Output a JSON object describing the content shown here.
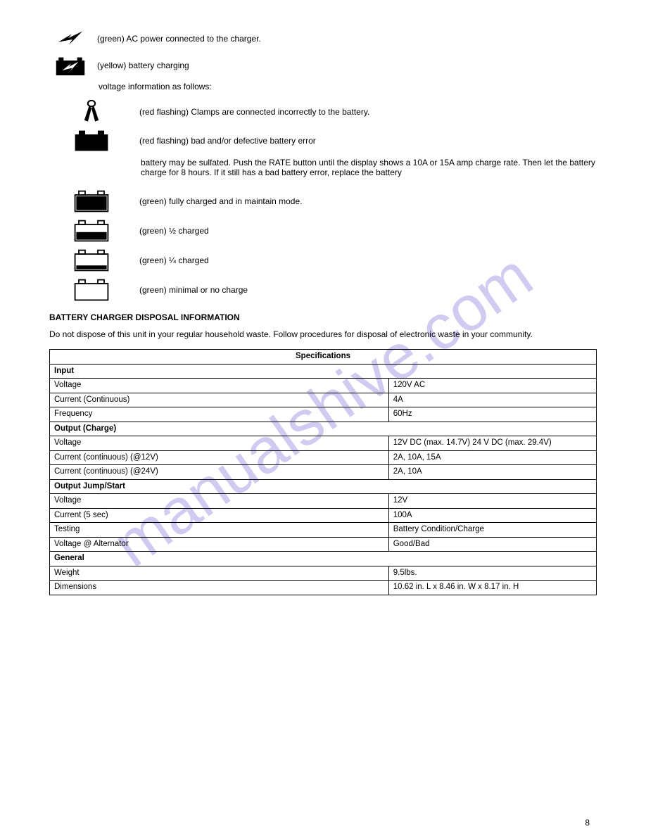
{
  "watermark": "manualshive.com",
  "top": {
    "power": {
      "label": "(green) AC power connected to the charger.",
      "icon": "bolt-icon"
    },
    "charging": {
      "label": "(yellow) battery charging",
      "desc": "voltage information as follows:",
      "icon": "battery-bolt-icon"
    },
    "clamps": {
      "label": "(red flashing) Clamps are connected incorrectly to the battery.",
      "icon": "clamps-icon"
    },
    "bad": {
      "label": "(red flashing) bad and/or defective battery error",
      "desc": "battery may be sulfated. Push the RATE button until the display shows a 10A or 15A amp charge rate. Then let the battery charge for 8 hours. If it still has a bad battery error, replace the battery",
      "icon": "battery-solid-icon"
    },
    "full": {
      "label": "(green) fully charged and in maintain mode.",
      "icon": "battery-full-icon"
    },
    "half": {
      "label": "(green) ½ charged",
      "icon": "battery-half-icon"
    },
    "quarter": {
      "label": "(green) ¼ charged",
      "icon": "battery-quarter-icon"
    },
    "empty": {
      "label": "(green) minimal or no charge",
      "icon": "battery-empty-icon"
    }
  },
  "disposal": {
    "head": "BATTERY CHARGER DISPOSAL INFORMATION",
    "text": "Do not dispose of this unit in your regular household waste. Follow procedures for disposal of electronic waste in your community."
  },
  "specs": {
    "title": "Specifications",
    "groups": [
      {
        "header": "Input",
        "rows": [
          [
            "Voltage",
            "120V AC"
          ],
          [
            "Current (Continuous)",
            "4A"
          ],
          [
            "Frequency",
            "60Hz"
          ]
        ]
      },
      {
        "header": "Output (Charge)",
        "rows": [
          [
            "Voltage",
            "12V DC (max. 14.7V) 24 V DC (max. 29.4V)"
          ],
          [
            "Current (continuous) (@12V)",
            "2A, 10A, 15A"
          ],
          [
            "Current (continuous) (@24V)",
            "2A, 10A"
          ]
        ]
      },
      {
        "header": "Output Jump/Start",
        "rows": [
          [
            "Voltage",
            "12V"
          ],
          [
            "Current (5 sec)",
            "100A"
          ],
          [
            "Testing",
            "Battery Condition/Charge"
          ],
          [
            "Voltage @ Alternator",
            "Good/Bad"
          ]
        ]
      },
      {
        "header": "General",
        "rows": [
          [
            "Weight",
            "9.5lbs."
          ],
          [
            "Dimensions",
            "10.62 in. L x 8.46 in. W x 8.17 in. H"
          ]
        ]
      }
    ]
  },
  "page_number": "8"
}
